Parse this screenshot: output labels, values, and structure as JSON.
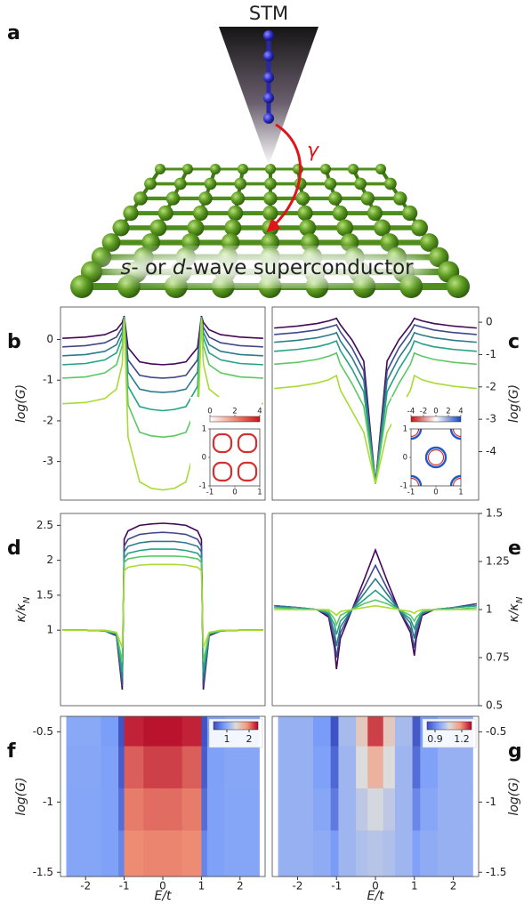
{
  "illustration": {
    "panel": "a",
    "tip": "STM",
    "coupling": "γ",
    "substrate": [
      "s",
      "- or ",
      "d",
      "-wave superconductor"
    ]
  },
  "chart_data": [
    {
      "type": "line",
      "panel": "b",
      "ylabel": "log(G)",
      "yaxis": "left",
      "x": [
        -2.6,
        -2,
        -1.5,
        -1.2,
        -1.05,
        -1,
        -0.9,
        -0.6,
        -0.3,
        0,
        0.3,
        0.6,
        0.9,
        1,
        1.05,
        1.2,
        1.5,
        2,
        2.6
      ],
      "xlim": [
        -2.65,
        2.65
      ],
      "ylim": [
        -3.95,
        0.8
      ],
      "yticks": [
        0,
        -1,
        -2,
        -3
      ],
      "series": [
        {
          "color": "#45075a",
          "values": [
            0.03,
            0.06,
            0.12,
            0.24,
            0.42,
            0.58,
            -0.2,
            -0.55,
            -0.6,
            -0.62,
            -0.6,
            -0.55,
            -0.2,
            0.58,
            0.42,
            0.24,
            0.12,
            0.06,
            0.03
          ]
        },
        {
          "color": "#3f4889",
          "values": [
            -0.18,
            -0.15,
            -0.08,
            0.06,
            0.3,
            0.55,
            -0.5,
            -0.88,
            -0.93,
            -0.95,
            -0.93,
            -0.88,
            -0.5,
            0.55,
            0.3,
            0.06,
            -0.08,
            -0.15,
            -0.18
          ]
        },
        {
          "color": "#2c7a8d",
          "values": [
            -0.4,
            -0.37,
            -0.29,
            -0.13,
            0.18,
            0.55,
            -0.8,
            -1.22,
            -1.28,
            -1.3,
            -1.28,
            -1.22,
            -0.8,
            0.55,
            0.18,
            -0.13,
            -0.29,
            -0.37,
            -0.4
          ]
        },
        {
          "color": "#25a284",
          "values": [
            -0.62,
            -0.59,
            -0.5,
            -0.33,
            0.05,
            0.55,
            -1.15,
            -1.65,
            -1.72,
            -1.75,
            -1.72,
            -1.65,
            -1.15,
            0.55,
            0.05,
            -0.33,
            -0.5,
            -0.59,
            -0.62
          ]
        },
        {
          "color": "#5cc863",
          "values": [
            -0.95,
            -0.92,
            -0.82,
            -0.62,
            -0.15,
            0.55,
            -1.6,
            -2.28,
            -2.37,
            -2.4,
            -2.37,
            -2.28,
            -1.6,
            0.55,
            -0.15,
            -0.62,
            -0.82,
            -0.92,
            -0.95
          ]
        },
        {
          "color": "#a8db34",
          "values": [
            -1.58,
            -1.55,
            -1.45,
            -1.22,
            -0.6,
            0.5,
            -2.4,
            -3.5,
            -3.66,
            -3.7,
            -3.66,
            -3.5,
            -2.4,
            0.5,
            -0.6,
            -1.22,
            -1.45,
            -1.55,
            -1.58
          ]
        }
      ],
      "inset": {
        "colormap": "white-red",
        "zlim": [
          0,
          4
        ],
        "colorbar_ticks": [
          0,
          2,
          4
        ],
        "xlim": [
          -1,
          1
        ],
        "ylim": [
          -1,
          1
        ],
        "xticks": [
          -1,
          0,
          1
        ],
        "yticks": [
          -1,
          0,
          1
        ]
      }
    },
    {
      "type": "line",
      "panel": "c",
      "ylabel": "log(G)",
      "yaxis": "right",
      "x": [
        -2.6,
        -2,
        -1.5,
        -1.2,
        -1.05,
        -1,
        -0.9,
        -0.6,
        -0.3,
        0,
        0.3,
        0.6,
        0.9,
        1,
        1.05,
        1.2,
        1.5,
        2,
        2.6
      ],
      "xlim": [
        -2.65,
        2.65
      ],
      "ylim": [
        -5.5,
        0.47
      ],
      "yticks": [
        0,
        -1,
        -2,
        -3,
        -4
      ],
      "series": [
        {
          "color": "#45075a",
          "values": [
            -0.18,
            -0.12,
            -0.04,
            0.04,
            0.1,
            0.12,
            -0.08,
            -0.55,
            -1.2,
            -5.0,
            -1.2,
            -0.55,
            -0.08,
            0.12,
            0.1,
            0.04,
            -0.04,
            -0.12,
            -0.18
          ]
        },
        {
          "color": "#3f4889",
          "values": [
            -0.38,
            -0.32,
            -0.24,
            -0.15,
            -0.1,
            -0.08,
            -0.3,
            -0.8,
            -1.5,
            -5.0,
            -1.5,
            -0.8,
            -0.3,
            -0.08,
            -0.1,
            -0.15,
            -0.24,
            -0.32,
            -0.38
          ]
        },
        {
          "color": "#2c7a8d",
          "values": [
            -0.62,
            -0.56,
            -0.48,
            -0.4,
            -0.35,
            -0.32,
            -0.58,
            -1.1,
            -1.8,
            -5.0,
            -1.8,
            -1.1,
            -0.58,
            -0.32,
            -0.35,
            -0.4,
            -0.48,
            -0.56,
            -0.62
          ]
        },
        {
          "color": "#25a284",
          "values": [
            -0.9,
            -0.84,
            -0.76,
            -0.67,
            -0.6,
            -0.58,
            -0.88,
            -1.45,
            -2.15,
            -5.0,
            -2.15,
            -1.45,
            -0.88,
            -0.58,
            -0.6,
            -0.67,
            -0.76,
            -0.84,
            -0.9
          ]
        },
        {
          "color": "#5cc863",
          "values": [
            -1.3,
            -1.24,
            -1.15,
            -1.05,
            -0.98,
            -0.95,
            -1.3,
            -1.9,
            -2.6,
            -5.0,
            -2.6,
            -1.9,
            -1.3,
            -0.95,
            -0.98,
            -1.05,
            -1.15,
            -1.24,
            -1.3
          ]
        },
        {
          "color": "#a8db34",
          "values": [
            -2.05,
            -1.98,
            -1.88,
            -1.78,
            -1.68,
            -1.65,
            -2.1,
            -2.75,
            -3.4,
            -5.0,
            -3.4,
            -2.75,
            -2.1,
            -1.65,
            -1.68,
            -1.78,
            -1.88,
            -1.98,
            -2.05
          ]
        }
      ],
      "inset": {
        "colormap": "red-white-blue",
        "zlim": [
          -4,
          4
        ],
        "colorbar_ticks": [
          -4,
          -2,
          0,
          2,
          4
        ],
        "xlim": [
          -1,
          1
        ],
        "ylim": [
          -1,
          1
        ],
        "xticks": [
          -1,
          0,
          1
        ],
        "yticks": [
          -1,
          0,
          1
        ]
      }
    },
    {
      "type": "line",
      "panel": "d",
      "ylabel": [
        "κ/κ",
        "N"
      ],
      "yaxis": "left",
      "x": [
        -2.6,
        -2,
        -1.5,
        -1.2,
        -1.05,
        -1,
        -0.9,
        -0.6,
        -0.3,
        0,
        0.3,
        0.6,
        0.9,
        1,
        1.05,
        1.2,
        1.5,
        2,
        2.6
      ],
      "xlim": [
        -2.65,
        2.65
      ],
      "ylim": [
        -0.08,
        2.67
      ],
      "yticks": [
        1,
        1.5,
        2,
        2.5
      ],
      "series": [
        {
          "color": "#45075a",
          "values": [
            1.0,
            1.0,
            0.99,
            0.92,
            0.15,
            2.3,
            2.42,
            2.5,
            2.52,
            2.53,
            2.52,
            2.5,
            2.42,
            2.3,
            0.15,
            0.92,
            0.99,
            1.0,
            1.0
          ]
        },
        {
          "color": "#3f4889",
          "values": [
            1.0,
            1.0,
            0.99,
            0.93,
            0.2,
            2.2,
            2.3,
            2.37,
            2.39,
            2.4,
            2.39,
            2.37,
            2.3,
            2.2,
            0.2,
            0.93,
            0.99,
            1.0,
            1.0
          ]
        },
        {
          "color": "#2c7a8d",
          "values": [
            1.0,
            1.0,
            0.99,
            0.94,
            0.3,
            2.12,
            2.2,
            2.25,
            2.27,
            2.27,
            2.27,
            2.25,
            2.2,
            2.12,
            0.3,
            0.94,
            0.99,
            1.0,
            1.0
          ]
        },
        {
          "color": "#25a284",
          "values": [
            1.0,
            1.0,
            0.99,
            0.95,
            0.4,
            2.03,
            2.1,
            2.14,
            2.16,
            2.16,
            2.16,
            2.14,
            2.1,
            2.03,
            0.4,
            0.95,
            0.99,
            1.0,
            1.0
          ]
        },
        {
          "color": "#5cc863",
          "values": [
            1.0,
            1.0,
            0.99,
            0.96,
            0.55,
            1.97,
            2.02,
            2.05,
            2.06,
            2.06,
            2.06,
            2.05,
            2.02,
            1.97,
            0.55,
            0.96,
            0.99,
            1.0,
            1.0
          ]
        },
        {
          "color": "#a8db34",
          "values": [
            1.0,
            1.0,
            1.0,
            0.97,
            0.75,
            1.85,
            1.9,
            1.93,
            1.94,
            1.94,
            1.94,
            1.93,
            1.9,
            1.85,
            0.75,
            0.97,
            1.0,
            1.0,
            1.0
          ]
        }
      ]
    },
    {
      "type": "line",
      "panel": "e",
      "ylabel": [
        "κ/κ",
        "N"
      ],
      "yaxis": "right",
      "x": [
        -2.6,
        -2,
        -1.5,
        -1.2,
        -1.05,
        -1,
        -0.9,
        -0.6,
        -0.3,
        0,
        0.3,
        0.6,
        0.9,
        1,
        1.05,
        1.2,
        1.5,
        2,
        2.6
      ],
      "xlim": [
        -2.65,
        2.65
      ],
      "ylim": [
        0.5,
        1.5
      ],
      "yticks": [
        0.5,
        0.75,
        1,
        1.25,
        1.5
      ],
      "series": [
        {
          "color": "#45075a",
          "values": [
            1.02,
            1.01,
            1.0,
            0.96,
            0.8,
            0.69,
            0.85,
            1.0,
            1.15,
            1.31,
            1.15,
            1.0,
            0.88,
            0.76,
            0.85,
            0.97,
            1.0,
            1.01,
            1.03
          ]
        },
        {
          "color": "#3f4889",
          "values": [
            1.02,
            1.01,
            1.0,
            0.97,
            0.84,
            0.75,
            0.88,
            1.0,
            1.11,
            1.23,
            1.11,
            1.0,
            0.9,
            0.8,
            0.88,
            0.98,
            1.0,
            1.01,
            1.03
          ]
        },
        {
          "color": "#2c7a8d",
          "values": [
            1.02,
            1.01,
            1.0,
            0.98,
            0.88,
            0.81,
            0.91,
            1.0,
            1.08,
            1.16,
            1.08,
            1.0,
            0.93,
            0.85,
            0.91,
            0.98,
            1.0,
            1.01,
            1.02
          ]
        },
        {
          "color": "#25a284",
          "values": [
            1.01,
            1.01,
            1.0,
            0.98,
            0.92,
            0.87,
            0.94,
            1.0,
            1.05,
            1.1,
            1.05,
            1.0,
            0.95,
            0.9,
            0.93,
            0.99,
            1.0,
            1.01,
            1.02
          ]
        },
        {
          "color": "#5cc863",
          "values": [
            1.01,
            1.0,
            1.0,
            0.99,
            0.95,
            0.92,
            0.97,
            1.0,
            1.03,
            1.05,
            1.03,
            1.0,
            0.97,
            0.94,
            0.96,
            0.99,
            1.0,
            1.0,
            1.01
          ]
        },
        {
          "color": "#a8db34",
          "values": [
            1.0,
            1.0,
            1.0,
            1.0,
            0.98,
            0.97,
            0.99,
            1.0,
            1.01,
            1.02,
            1.01,
            1.0,
            0.99,
            0.98,
            0.99,
            1.0,
            1.0,
            1.0,
            1.0
          ]
        }
      ]
    },
    {
      "type": "heatmap",
      "panel": "f",
      "ylabel": "log(G)",
      "xlabel": "E/t",
      "yaxis": "left",
      "colormap": "coolwarm",
      "xlim": [
        -2.65,
        2.65
      ],
      "xticks": [
        -2,
        -1,
        0,
        1,
        2
      ],
      "ylim": [
        -1.53,
        -0.39
      ],
      "yticks": [
        -0.5,
        -1,
        -1.5
      ],
      "xbins": [
        -2.5,
        -1.6,
        -1.15,
        -1.0,
        -0.5,
        0.5,
        1.0,
        1.15,
        1.6,
        2.5
      ],
      "ybins": [
        -1.53,
        -1.2,
        -0.9,
        -0.6,
        -0.39
      ],
      "z": [
        [
          0.95,
          0.92,
          0.75,
          1.95,
          1.97,
          1.95,
          0.75,
          0.92,
          0.95
        ],
        [
          0.95,
          0.92,
          0.6,
          2.0,
          2.05,
          2.0,
          0.6,
          0.92,
          0.95
        ],
        [
          0.96,
          0.92,
          0.5,
          2.1,
          2.2,
          2.1,
          0.5,
          0.92,
          0.96
        ],
        [
          0.97,
          0.9,
          0.45,
          2.3,
          2.35,
          2.3,
          0.45,
          0.9,
          0.97
        ]
      ],
      "zlim": [
        0.4,
        2.4
      ],
      "colorbar_ticks": [
        1,
        2
      ]
    },
    {
      "type": "heatmap",
      "panel": "g",
      "ylabel": "log(G)",
      "xlabel": "E/t",
      "yaxis": "right",
      "colormap": "coolwarm",
      "xlim": [
        -2.65,
        2.65
      ],
      "xticks": [
        -2,
        -1,
        0,
        1,
        2
      ],
      "ylim": [
        -1.53,
        -0.39
      ],
      "yticks": [
        -0.5,
        -1,
        -1.5
      ],
      "xbins": [
        -2.5,
        -1.6,
        -1.15,
        -0.95,
        -0.5,
        -0.2,
        0.2,
        0.5,
        0.95,
        1.15,
        1.6,
        2.5
      ],
      "ybins": [
        -1.53,
        -1.2,
        -0.9,
        -0.6,
        -0.39
      ],
      "z": [
        [
          0.97,
          0.96,
          0.93,
          0.98,
          1.0,
          1.01,
          1.0,
          0.98,
          0.94,
          0.96,
          0.97
        ],
        [
          0.97,
          0.95,
          0.88,
          0.98,
          1.02,
          1.05,
          1.02,
          0.98,
          0.9,
          0.95,
          0.97
        ],
        [
          0.97,
          0.94,
          0.85,
          0.98,
          1.06,
          1.14,
          1.06,
          0.98,
          0.86,
          0.94,
          0.97
        ],
        [
          0.97,
          0.93,
          0.82,
          0.99,
          1.1,
          1.26,
          1.1,
          0.99,
          0.83,
          0.93,
          0.97
        ]
      ],
      "zlim": [
        0.81,
        1.31
      ],
      "colorbar_ticks": [
        0.9,
        1.2
      ]
    }
  ]
}
